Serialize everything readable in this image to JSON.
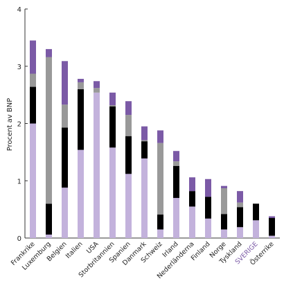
{
  "chart_data": {
    "type": "bar",
    "stacked": true,
    "title": "",
    "xlabel": "",
    "ylabel": "Procent av BNP",
    "ylim": [
      0,
      4
    ],
    "yticks": [
      "0",
      "1",
      "2",
      "3",
      "4"
    ],
    "grid": false,
    "legend": "none",
    "categories": [
      "Frankrike",
      "Luxemburg",
      "Belgien",
      "Italien",
      "USA",
      "Storbritannien",
      "Spanien",
      "Danmark",
      "Schweiz",
      "Irland",
      "Nederländerna",
      "Finland",
      "Norge",
      "Tyskland",
      "SVERIGE",
      "Österrike"
    ],
    "highlight_category": "SVERIGE",
    "highlight_color": "#7b5aa6",
    "series": [
      {
        "color": "#c3b2dc",
        "values": [
          2.0,
          0.06,
          0.88,
          1.54,
          2.54,
          1.58,
          1.12,
          1.39,
          0.15,
          0.7,
          0.55,
          0.34,
          0.15,
          0.19,
          0.31,
          0.04
        ]
      },
      {
        "color": "#000000",
        "values": [
          0.64,
          0.54,
          1.05,
          1.06,
          0.0,
          0.72,
          0.66,
          0.3,
          0.26,
          0.56,
          0.27,
          0.38,
          0.27,
          0.35,
          0.29,
          0.31
        ]
      },
      {
        "color": "#999999",
        "values": [
          0.23,
          2.56,
          0.4,
          0.12,
          0.08,
          0.02,
          0.37,
          0.02,
          1.25,
          0.08,
          0.0,
          0.0,
          0.45,
          0.08,
          0.0,
          0.0
        ]
      },
      {
        "color": "#7b5aa6",
        "values": [
          0.58,
          0.14,
          0.76,
          0.06,
          0.12,
          0.22,
          0.24,
          0.24,
          0.22,
          0.18,
          0.24,
          0.31,
          0.04,
          0.2,
          0.0,
          0.03
        ]
      }
    ]
  }
}
